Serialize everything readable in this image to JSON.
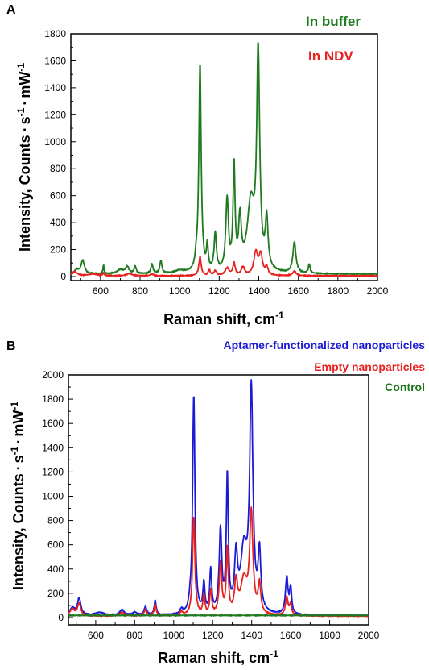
{
  "chart_data": [
    {
      "panel": "A",
      "type": "line",
      "xlabel": "Raman shift, cm",
      "xlabel_sup": "-1",
      "ylabel": "Intensity, Counts",
      "ylabel_sup": "-1",
      "ylabel_unit": "mW",
      "xlim": [
        450,
        2000
      ],
      "ylim": [
        -30,
        1800
      ],
      "xticks": [
        600,
        800,
        1000,
        1200,
        1400,
        1600,
        1800,
        2000
      ],
      "yticks": [
        0,
        200,
        400,
        600,
        800,
        1000,
        1200,
        1400,
        1600,
        1800
      ],
      "legend": "top-right",
      "baseline": [
        0,
        0
      ],
      "series": [
        {
          "name": "In buffer",
          "color": "#1f7a1f",
          "baseline": 18,
          "peaks": [
            [
              480,
              30,
              12
            ],
            [
              510,
              100,
              10
            ],
            [
              615,
              65,
              3
            ],
            [
              700,
              30,
              20
            ],
            [
              735,
              50,
              10
            ],
            [
              775,
              55,
              6
            ],
            [
              860,
              70,
              6
            ],
            [
              905,
              95,
              6
            ],
            [
              1000,
              20,
              30
            ],
            [
              1083,
              60,
              6
            ],
            [
              1103,
              1560,
              7
            ],
            [
              1140,
              180,
              5
            ],
            [
              1180,
              280,
              7
            ],
            [
              1240,
              530,
              8
            ],
            [
              1275,
              780,
              6
            ],
            [
              1305,
              370,
              8
            ],
            [
              1360,
              500,
              22
            ],
            [
              1397,
              1580,
              9
            ],
            [
              1440,
              370,
              8
            ],
            [
              1580,
              230,
              9
            ],
            [
              1655,
              70,
              5
            ]
          ]
        },
        {
          "name": "In NDV",
          "color": "#e8211f",
          "baseline": 5,
          "peaks": [
            [
              470,
              30,
              15
            ],
            [
              560,
              15,
              25
            ],
            [
              615,
              20,
              4
            ],
            [
              745,
              18,
              15
            ],
            [
              860,
              15,
              8
            ],
            [
              1103,
              140,
              7
            ],
            [
              1150,
              40,
              6
            ],
            [
              1180,
              35,
              8
            ],
            [
              1240,
              55,
              12
            ],
            [
              1275,
              90,
              7
            ],
            [
              1320,
              60,
              10
            ],
            [
              1385,
              170,
              12
            ],
            [
              1410,
              150,
              10
            ],
            [
              1440,
              60,
              8
            ],
            [
              1580,
              35,
              10
            ]
          ]
        }
      ]
    },
    {
      "panel": "B",
      "type": "line",
      "xlabel": "Raman shift, cm",
      "xlabel_sup": "-1",
      "ylabel": "Intensity, Counts",
      "ylabel_sup": "-1",
      "ylabel_unit": "mW",
      "xlim": [
        460,
        2000
      ],
      "ylim": [
        -60,
        2000
      ],
      "xticks": [
        600,
        800,
        1000,
        1200,
        1400,
        1600,
        1800,
        2000
      ],
      "yticks": [
        0,
        200,
        400,
        600,
        800,
        1000,
        1200,
        1400,
        1600,
        1800,
        2000
      ],
      "legend": "top-right",
      "baseline": [
        0,
        0
      ],
      "series": [
        {
          "name": "Aptamer-functionalized nanoparticles",
          "color": "#1b1bd6",
          "baseline": 15,
          "peaks": [
            [
              480,
              60,
              15
            ],
            [
              515,
              140,
              10
            ],
            [
              620,
              25,
              25
            ],
            [
              735,
              45,
              14
            ],
            [
              800,
              25,
              12
            ],
            [
              855,
              70,
              8
            ],
            [
              905,
              120,
              6
            ],
            [
              1040,
              40,
              8
            ],
            [
              1083,
              50,
              6
            ],
            [
              1103,
              1820,
              7
            ],
            [
              1155,
              240,
              6
            ],
            [
              1190,
              350,
              6
            ],
            [
              1240,
              680,
              8
            ],
            [
              1275,
              1130,
              6
            ],
            [
              1320,
              440,
              9
            ],
            [
              1360,
              500,
              20
            ],
            [
              1398,
              1810,
              10
            ],
            [
              1440,
              480,
              8
            ],
            [
              1580,
              300,
              8
            ],
            [
              1600,
              210,
              6
            ]
          ]
        },
        {
          "name": "Empty nanoparticles",
          "color": "#e8211f",
          "baseline": 12,
          "peaks": [
            [
              480,
              55,
              15
            ],
            [
              515,
              100,
              10
            ],
            [
              735,
              30,
              15
            ],
            [
              855,
              50,
              8
            ],
            [
              905,
              95,
              6
            ],
            [
              1040,
              30,
              8
            ],
            [
              1103,
              820,
              7
            ],
            [
              1155,
              160,
              6
            ],
            [
              1190,
              200,
              6
            ],
            [
              1240,
              420,
              8
            ],
            [
              1275,
              540,
              6
            ],
            [
              1320,
              260,
              9
            ],
            [
              1360,
              280,
              20
            ],
            [
              1398,
              820,
              10
            ],
            [
              1440,
              240,
              8
            ],
            [
              1580,
              150,
              8
            ],
            [
              1600,
              90,
              6
            ]
          ]
        },
        {
          "name": "Control",
          "color": "#1f7a1f",
          "baseline": 18,
          "peaks": []
        }
      ]
    }
  ]
}
